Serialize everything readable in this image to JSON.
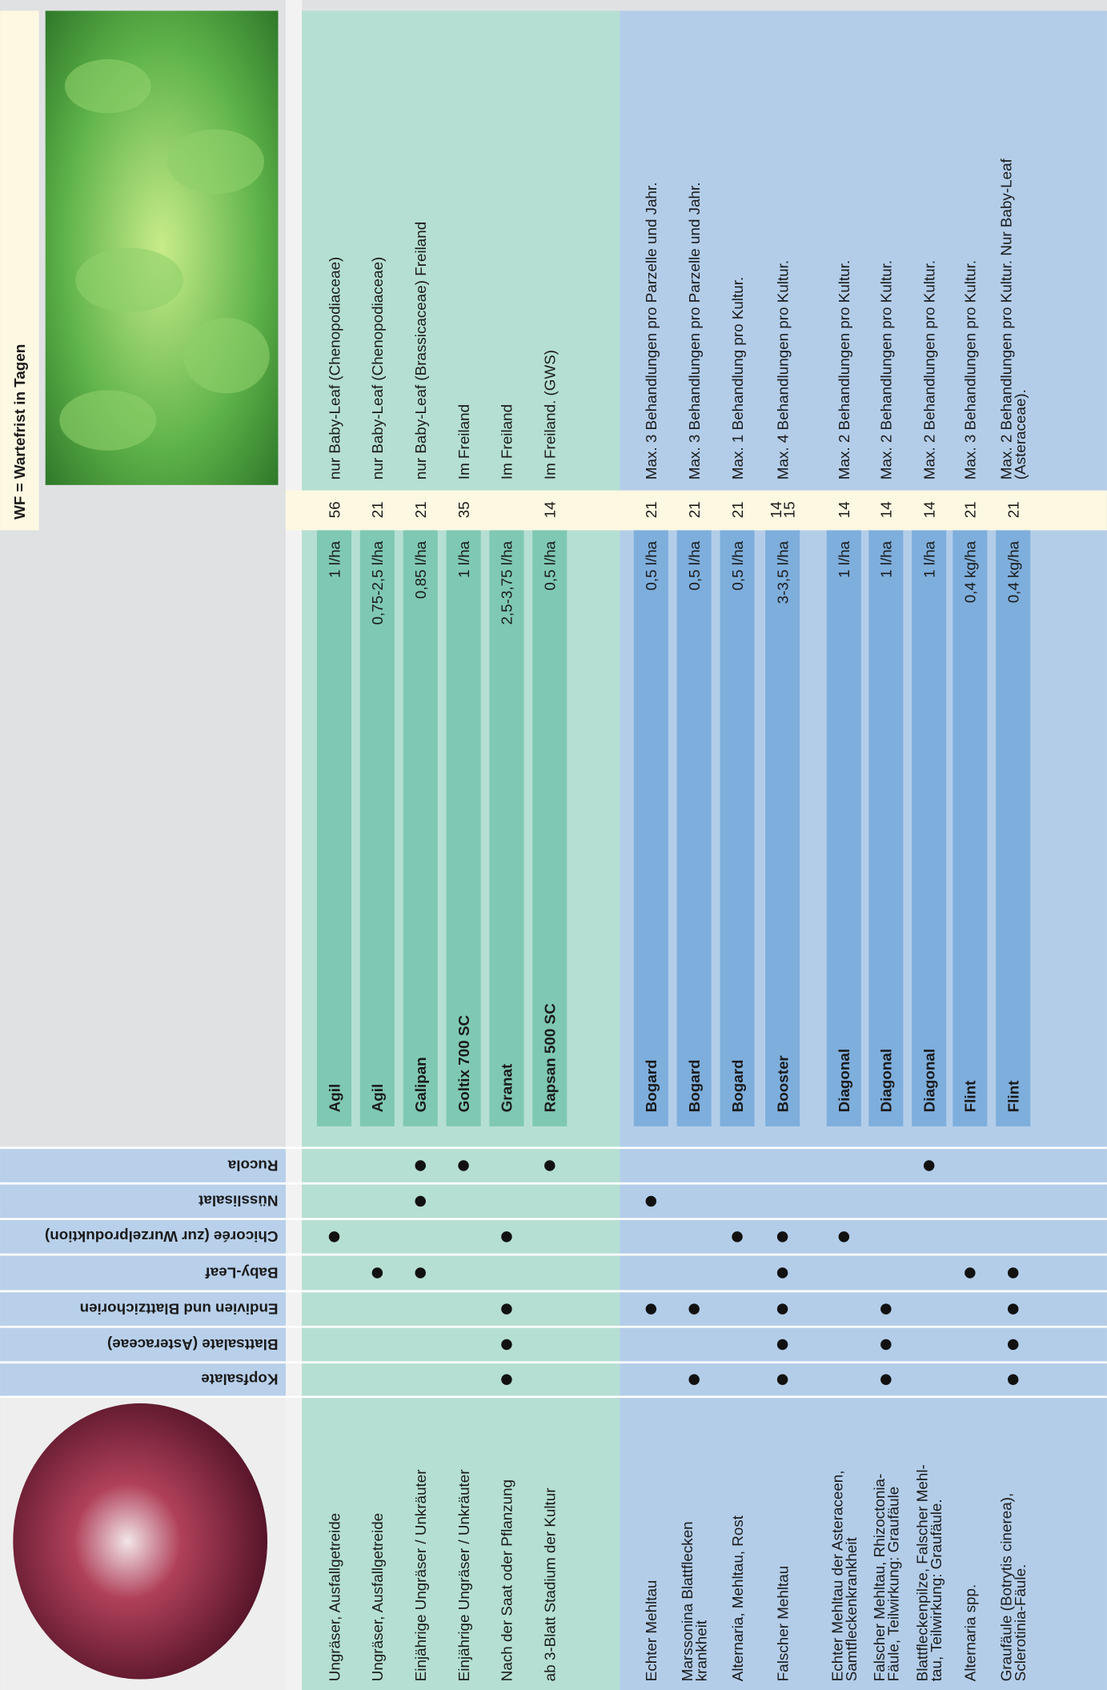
{
  "header": {
    "wf_label": "WF  = Wartefrist in Tagen"
  },
  "crops": [
    "Kopfsalate",
    "Blattsalate (Asteraceae)",
    "Endivien und Blattzichorien",
    "Baby-Leaf",
    "Chicorée (zur Wurzelproduktion)",
    "Nüsslisalat",
    "Rucola"
  ],
  "sections": [
    {
      "color": "#b5dfd2",
      "bar_color": "#7fc8b4",
      "rows": [
        {
          "indication": [
            "Ungräser, Ausfallgetreide"
          ],
          "crops": [
            false,
            false,
            false,
            false,
            true,
            false,
            false
          ],
          "product": "Agil",
          "dose": "1 l/ha",
          "wf": [
            56
          ],
          "remark": [
            "nur Baby-Leaf (Chenopodiaceae)"
          ]
        },
        {
          "indication": [
            "Ungräser, Ausfallgetreide"
          ],
          "crops": [
            false,
            false,
            false,
            true,
            false,
            false,
            false
          ],
          "product": "Agil",
          "dose": "0,75-2,5 l/ha",
          "wf": [
            21
          ],
          "remark": [
            "nur Baby-Leaf (Chenopodiaceae)"
          ]
        },
        {
          "indication": [
            "Einjährige Ungräser / Unkräuter"
          ],
          "crops": [
            false,
            false,
            false,
            true,
            false,
            true,
            true
          ],
          "product": "Galipan",
          "dose": "0,85 l/ha",
          "wf": [
            21
          ],
          "remark": [
            "nur Baby-Leaf (Brassicaceae) Freiland"
          ]
        },
        {
          "indication": [
            "Einjährige Ungräser / Unkräuter"
          ],
          "crops": [
            false,
            false,
            false,
            false,
            false,
            false,
            true
          ],
          "product": "Goltix 700 SC",
          "dose": "1 l/ha",
          "wf": [
            35
          ],
          "remark": [
            "Im Freiland"
          ]
        },
        {
          "indication": [
            "Nach der Saat oder Pflanzung"
          ],
          "crops": [
            true,
            true,
            true,
            false,
            true,
            false,
            false
          ],
          "product": "Granat",
          "dose": "2,5-3,75 l/ha",
          "wf": [],
          "remark": [
            "Im Freiland"
          ]
        },
        {
          "indication": [
            "ab 3-Blatt Stadium der Kultur"
          ],
          "crops": [
            false,
            false,
            false,
            false,
            false,
            false,
            true
          ],
          "product": "Rapsan 500 SC",
          "dose": "0,5 l/ha",
          "wf": [
            14
          ],
          "remark": [
            "Im Freiland. (GWS)"
          ]
        }
      ]
    },
    {
      "color": "#b3cde9",
      "bar_color": "#7eaedc",
      "rows": [
        {
          "indication": [
            "Echter Mehltau"
          ],
          "crops": [
            false,
            false,
            true,
            false,
            false,
            true,
            false
          ],
          "product": "Bogard",
          "dose": "0,5 l/ha",
          "wf": [
            21
          ],
          "remark": [
            "Max. 3 Behandlungen pro Parzelle und Jahr."
          ]
        },
        {
          "indication": [
            "Marssonina Blattflecken",
            "krankheit"
          ],
          "crops": [
            true,
            false,
            true,
            false,
            false,
            false,
            false
          ],
          "product": "Bogard",
          "dose": "0,5 l/ha",
          "wf": [
            21
          ],
          "remark": [
            "Max. 3 Behandlungen pro Parzelle und Jahr."
          ]
        },
        {
          "indication": [
            "Alternaria, Mehltau, Rost"
          ],
          "crops": [
            false,
            false,
            false,
            false,
            true,
            false,
            false
          ],
          "product": "Bogard",
          "dose": "0,5 l/ha",
          "wf": [
            21
          ],
          "remark": [
            "Max. 1 Behandlung pro Kultur."
          ]
        },
        {
          "indication": [
            "Falscher Mehltau"
          ],
          "crops": [
            true,
            true,
            true,
            true,
            true,
            false,
            false
          ],
          "product": "Booster",
          "dose": "3-3,5 l/ha",
          "wf": [
            14,
            15
          ],
          "remark": [
            "Max. 4 Behandlungen pro Kultur."
          ]
        },
        {
          "indication": [
            "Echter Mehltau der Asteraceen,",
            "Samtfleckenkrankheit"
          ],
          "crops": [
            false,
            false,
            false,
            false,
            true,
            false,
            false
          ],
          "product": "Diagonal",
          "dose": "1 l/ha",
          "wf": [
            14
          ],
          "remark": [
            "Max. 2 Behandlungen pro Kultur."
          ]
        },
        {
          "indication": [
            "Falscher Mehltau, Rhizoctonia-",
            "Fäule, Teilwirkung: Graufäule"
          ],
          "crops": [
            true,
            true,
            true,
            false,
            false,
            false,
            false
          ],
          "product": "Diagonal",
          "dose": "1 l/ha",
          "wf": [
            14
          ],
          "remark": [
            "Max. 2 Behandlungen pro Kultur."
          ]
        },
        {
          "indication": [
            "Blattfleckenpilze, Falscher Mehl-",
            "tau, Teilwirkung: Graufäule."
          ],
          "crops": [
            false,
            false,
            false,
            false,
            false,
            false,
            true
          ],
          "product": "Diagonal",
          "dose": "1 l/ha",
          "wf": [
            14
          ],
          "remark": [
            "Max. 2 Behandlungen pro Kultur."
          ]
        },
        {
          "indication": [
            "Alternaria spp."
          ],
          "crops": [
            false,
            false,
            false,
            true,
            false,
            false,
            false
          ],
          "product": "Flint",
          "dose": "0,4 kg/ha",
          "wf": [
            21
          ],
          "remark": [
            "Max. 3 Behandlungen pro Kultur."
          ]
        },
        {
          "indication": [
            "Graufäule (Botrytis cinerea),",
            "Sclerotinia-Fäule."
          ],
          "crops": [
            true,
            true,
            true,
            true,
            false,
            false,
            false
          ],
          "product": "Flint",
          "dose": "0,4 kg/ha",
          "wf": [
            21
          ],
          "remark": [
            "Max. 2 Behandlungen pro Kultur. Nur Baby-Leaf",
            "(Asteraceae)."
          ]
        }
      ]
    }
  ]
}
